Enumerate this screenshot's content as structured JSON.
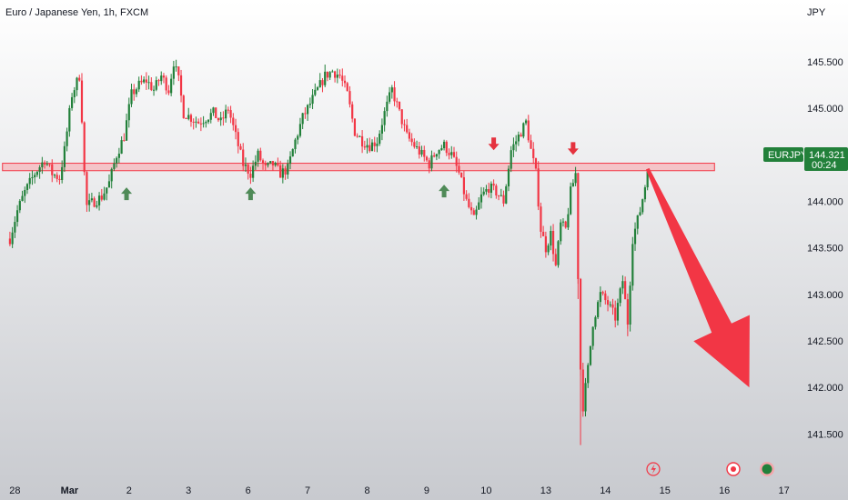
{
  "symbol": {
    "title": "Euro / Japanese Yen, 1h, FXCM",
    "currency_label": "JPY"
  },
  "price_badge": {
    "ticker": "EURJPY",
    "price": "144.321",
    "countdown": "00:24"
  },
  "icons": {
    "lightning": "lightning-icon",
    "dot": "record-dot-icon",
    "globe": "globe-icon"
  },
  "colors": {
    "bull": "#22803a",
    "bear": "#f23645",
    "zone_fill": "#f5b5bb",
    "zone_stroke": "#f23645",
    "up_marker": "#4f8a57",
    "down_marker": "#e5323e",
    "big_arrow": "#f23645",
    "badge_bg": "#22803a",
    "bg_top": "#ffffff",
    "bg_bottom": "#c8cacf"
  },
  "chart_data": {
    "type": "candlestick",
    "symbol": "EURJPY",
    "timeframe": "1h",
    "source": "FXCM",
    "y_axis": {
      "ticks": [
        "145.500",
        "145.000",
        "144.500",
        "144.000",
        "143.500",
        "143.000",
        "142.500",
        "142.000",
        "141.500"
      ],
      "values": [
        145.5,
        145.0,
        144.5,
        144.0,
        143.5,
        143.0,
        142.5,
        142.0,
        141.5
      ],
      "ylim": [
        141.2,
        145.95
      ]
    },
    "x_axis": {
      "ticks": [
        {
          "label": "28",
          "t": 2,
          "bold": false
        },
        {
          "label": "Mar",
          "t": 24,
          "bold": true
        },
        {
          "label": "2",
          "t": 48,
          "bold": false
        },
        {
          "label": "3",
          "t": 72,
          "bold": false
        },
        {
          "label": "6",
          "t": 96,
          "bold": false
        },
        {
          "label": "7",
          "t": 120,
          "bold": false
        },
        {
          "label": "8",
          "t": 144,
          "bold": false
        },
        {
          "label": "9",
          "t": 168,
          "bold": false
        },
        {
          "label": "10",
          "t": 192,
          "bold": false
        },
        {
          "label": "13",
          "t": 216,
          "bold": false
        },
        {
          "label": "14",
          "t": 240,
          "bold": false
        },
        {
          "label": "15",
          "t": 264,
          "bold": false
        },
        {
          "label": "16",
          "t": 288,
          "bold": false
        },
        {
          "label": "17",
          "t": 312,
          "bold": false
        }
      ],
      "xlim": [
        -4,
        318
      ]
    },
    "resistance_zone": {
      "top": 144.41,
      "bottom": 144.33,
      "t_start": -3,
      "t_end": 284
    },
    "markers": [
      {
        "type": "up",
        "t": 47,
        "price": 144.15
      },
      {
        "type": "up",
        "t": 97,
        "price": 144.15
      },
      {
        "type": "up",
        "t": 175,
        "price": 144.18
      },
      {
        "type": "down",
        "t": 195,
        "price": 144.55
      },
      {
        "type": "down",
        "t": 227,
        "price": 144.5
      }
    ],
    "projection_arrow": {
      "t_start": 257,
      "p_start": 144.35,
      "t_end": 298,
      "p_end": 142.0
    },
    "last_price": 144.321,
    "candles_keypoints": [
      [
        0,
        143.6
      ],
      [
        3,
        143.9
      ],
      [
        6,
        144.1
      ],
      [
        10,
        144.3
      ],
      [
        14,
        144.45
      ],
      [
        17,
        144.3
      ],
      [
        20,
        144.25
      ],
      [
        22,
        144.55
      ],
      [
        25,
        145.15
      ],
      [
        28,
        145.35
      ],
      [
        29,
        144.9
      ],
      [
        30,
        144.3
      ],
      [
        31,
        143.95
      ],
      [
        34,
        144.0
      ],
      [
        37,
        144.05
      ],
      [
        40,
        144.2
      ],
      [
        43,
        144.5
      ],
      [
        46,
        144.7
      ],
      [
        49,
        145.15
      ],
      [
        52,
        145.25
      ],
      [
        55,
        145.3
      ],
      [
        58,
        145.2
      ],
      [
        61,
        145.35
      ],
      [
        64,
        145.2
      ],
      [
        66,
        145.5
      ],
      [
        68,
        145.3
      ],
      [
        70,
        144.95
      ],
      [
        73,
        144.9
      ],
      [
        76,
        144.85
      ],
      [
        79,
        144.9
      ],
      [
        82,
        144.95
      ],
      [
        85,
        144.85
      ],
      [
        88,
        145.0
      ],
      [
        91,
        144.7
      ],
      [
        94,
        144.4
      ],
      [
        97,
        144.3
      ],
      [
        100,
        144.5
      ],
      [
        103,
        144.35
      ],
      [
        106,
        144.4
      ],
      [
        109,
        144.3
      ],
      [
        112,
        144.35
      ],
      [
        115,
        144.65
      ],
      [
        118,
        144.9
      ],
      [
        121,
        145.05
      ],
      [
        124,
        145.2
      ],
      [
        127,
        145.35
      ],
      [
        130,
        145.4
      ],
      [
        133,
        145.35
      ],
      [
        136,
        145.15
      ],
      [
        139,
        144.75
      ],
      [
        142,
        144.65
      ],
      [
        145,
        144.6
      ],
      [
        148,
        144.65
      ],
      [
        151,
        144.95
      ],
      [
        154,
        145.2
      ],
      [
        157,
        144.95
      ],
      [
        160,
        144.7
      ],
      [
        163,
        144.6
      ],
      [
        166,
        144.5
      ],
      [
        169,
        144.4
      ],
      [
        172,
        144.55
      ],
      [
        175,
        144.6
      ],
      [
        178,
        144.5
      ],
      [
        181,
        144.3
      ],
      [
        184,
        144.0
      ],
      [
        187,
        143.8
      ],
      [
        190,
        144.05
      ],
      [
        193,
        144.15
      ],
      [
        196,
        144.1
      ],
      [
        199,
        144.0
      ],
      [
        202,
        144.55
      ],
      [
        205,
        144.7
      ],
      [
        208,
        144.85
      ],
      [
        210,
        144.55
      ],
      [
        212,
        144.3
      ],
      [
        214,
        143.7
      ],
      [
        216,
        143.5
      ],
      [
        218,
        143.65
      ],
      [
        220,
        143.3
      ],
      [
        222,
        143.75
      ],
      [
        224,
        143.7
      ],
      [
        226,
        144.1
      ],
      [
        228,
        144.3
      ],
      [
        229,
        143.2
      ],
      [
        230,
        142.2
      ],
      [
        231,
        141.8
      ],
      [
        233,
        142.2
      ],
      [
        235,
        142.7
      ],
      [
        238,
        143.0
      ],
      [
        241,
        142.9
      ],
      [
        244,
        142.75
      ],
      [
        247,
        143.15
      ],
      [
        249,
        142.7
      ],
      [
        251,
        143.6
      ],
      [
        254,
        143.9
      ],
      [
        257,
        144.3
      ]
    ]
  }
}
